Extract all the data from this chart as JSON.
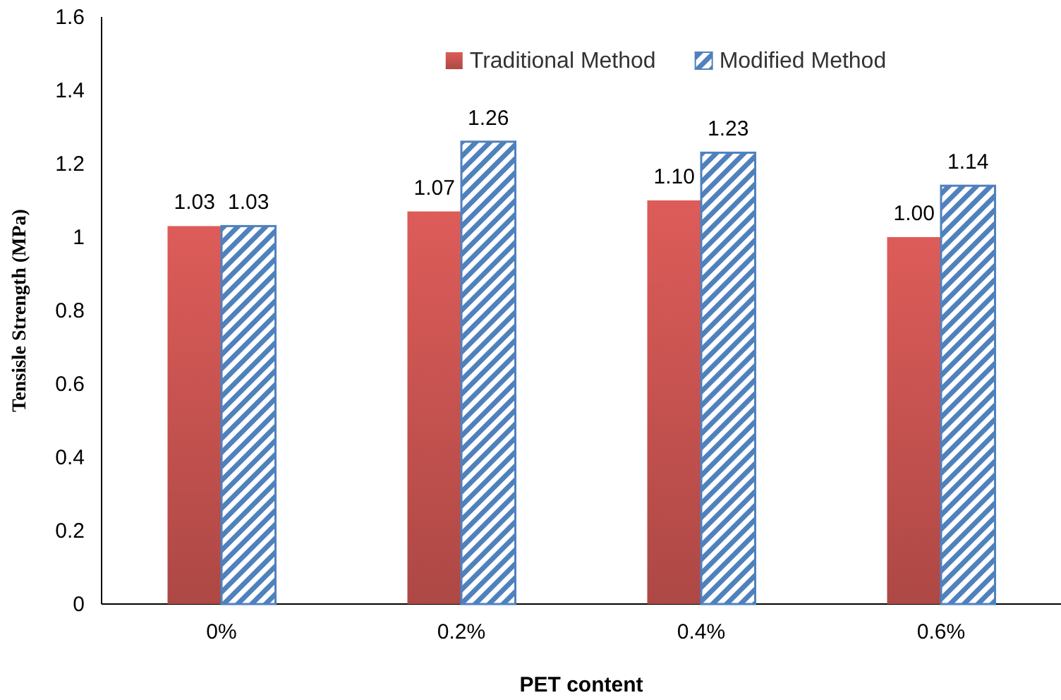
{
  "chart_data": {
    "type": "bar",
    "xlabel": "PET content",
    "ylabel": "Tensisle Strength (MPa)",
    "categories": [
      "0%",
      "0.2%",
      "0.4%",
      "0.6%"
    ],
    "series": [
      {
        "name": "Traditional Method",
        "color": "#c0504d",
        "values": [
          1.03,
          1.07,
          1.1,
          1.0
        ],
        "value_labels": [
          "1.03",
          "1.07",
          "1.10",
          "1.00"
        ]
      },
      {
        "name": "Modified Method",
        "color": "#4f81bd",
        "values": [
          1.03,
          1.26,
          1.23,
          1.14
        ],
        "value_labels": [
          "1.03",
          "1.26",
          "1.23",
          "1.14"
        ]
      }
    ],
    "ylim": [
      0,
      1.6
    ],
    "yticks": [
      0,
      {
        "value": 0.2,
        "label": "0.2"
      },
      {
        "value": 0.4,
        "label": "0.4"
      },
      {
        "value": 0.6,
        "label": "0.6"
      },
      {
        "value": 0.8,
        "label": "0.8"
      },
      1,
      {
        "value": 1.2,
        "label": "1.2"
      },
      {
        "value": 1.4,
        "label": "1.4"
      },
      {
        "value": 1.6,
        "label": "1.6"
      }
    ],
    "grid": false,
    "legend": "top"
  }
}
